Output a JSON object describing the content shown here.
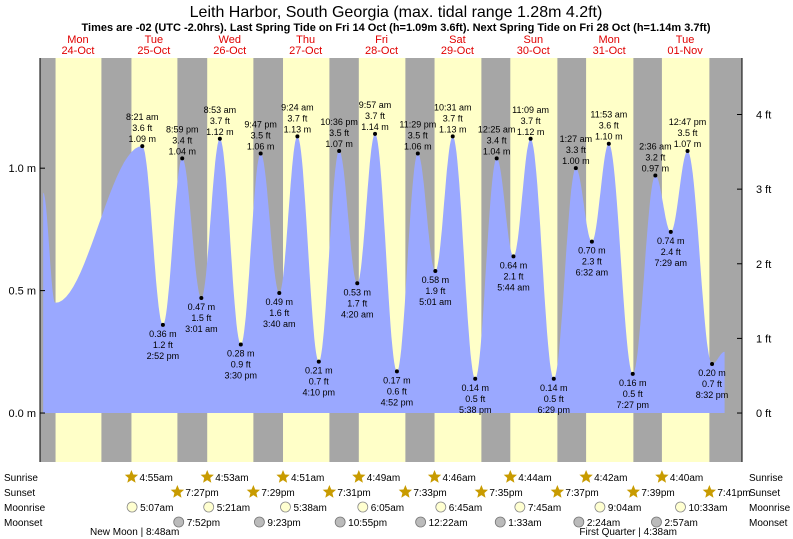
{
  "chart_data": {
    "type": "area",
    "title": "Leith Harbor, South Georgia (max. tidal range 1.28m 4.2ft)",
    "subtitle": "Times are -02 (UTC -2.0hrs). Last Spring Tide on Fri 14 Oct (h=1.09m 3.6ft). Next Spring Tide on Fri 28 Oct (h=1.14m 3.7ft)",
    "x_unit": "hours from Mon 24-Oct 00:00",
    "xlim": [
      0,
      222
    ],
    "ylim": [
      -0.2,
      1.45
    ],
    "days": [
      {
        "dow": "Mon",
        "date": "24-Oct"
      },
      {
        "dow": "Tue",
        "date": "25-Oct"
      },
      {
        "dow": "Wed",
        "date": "26-Oct"
      },
      {
        "dow": "Thu",
        "date": "27-Oct"
      },
      {
        "dow": "Fri",
        "date": "28-Oct"
      },
      {
        "dow": "Sat",
        "date": "29-Oct"
      },
      {
        "dow": "Sun",
        "date": "30-Oct"
      },
      {
        "dow": "Mon",
        "date": "31-Oct"
      },
      {
        "dow": "Tue",
        "date": "01-Nov"
      }
    ],
    "left_axis": {
      "unit": "m",
      "ticks": [
        {
          "v": 0,
          "label": "0.0 m"
        },
        {
          "v": 0.5,
          "label": "0.5 m"
        },
        {
          "v": 1.0,
          "label": "1.0 m"
        }
      ]
    },
    "right_axis": {
      "unit": "ft",
      "ticks": [
        {
          "v": 0,
          "label": "0 ft"
        },
        {
          "v": 1,
          "label": "1 ft"
        },
        {
          "v": 2,
          "label": "2 ft"
        },
        {
          "v": 3,
          "label": "3 ft"
        },
        {
          "v": 4,
          "label": "4 ft"
        }
      ]
    },
    "series_start": {
      "t": 1.0,
      "h": 0.9
    },
    "series_end": {
      "t": 216.5,
      "h": 0.25
    },
    "tides": [
      {
        "t": 4.8,
        "h": 0.45,
        "label": false
      },
      {
        "t": 32.35,
        "h": 1.09,
        "m": "1.09 m",
        "ft": "3.6 ft",
        "time": "8:21 am"
      },
      {
        "t": 38.87,
        "h": 0.36,
        "m": "0.36 m",
        "ft": "1.2 ft",
        "time": "2:52 pm"
      },
      {
        "t": 44.98,
        "h": 1.04,
        "m": "1.04 m",
        "ft": "3.4 ft",
        "time": "8:59 pm"
      },
      {
        "t": 51.02,
        "h": 0.47,
        "m": "0.47 m",
        "ft": "1.5 ft",
        "time": "3:01 am"
      },
      {
        "t": 56.88,
        "h": 1.12,
        "m": "1.12 m",
        "ft": "3.7 ft",
        "time": "8:53 am"
      },
      {
        "t": 63.5,
        "h": 0.28,
        "m": "0.28 m",
        "ft": "0.9 ft",
        "time": "3:30 pm"
      },
      {
        "t": 69.78,
        "h": 1.06,
        "m": "1.06 m",
        "ft": "3.5 ft",
        "time": "9:47 pm"
      },
      {
        "t": 75.67,
        "h": 0.49,
        "m": "0.49 m",
        "ft": "1.6 ft",
        "time": "3:40 am"
      },
      {
        "t": 81.4,
        "h": 1.13,
        "m": "1.13 m",
        "ft": "3.7 ft",
        "time": "9:24 am"
      },
      {
        "t": 88.17,
        "h": 0.21,
        "m": "0.21 m",
        "ft": "0.7 ft",
        "time": "4:10 pm"
      },
      {
        "t": 94.6,
        "h": 1.07,
        "m": "1.07 m",
        "ft": "3.5 ft",
        "time": "10:36 pm"
      },
      {
        "t": 100.33,
        "h": 0.53,
        "m": "0.53 m",
        "ft": "1.7 ft",
        "time": "4:20 am"
      },
      {
        "t": 105.95,
        "h": 1.14,
        "m": "1.14 m",
        "ft": "3.7 ft",
        "time": "9:57 am"
      },
      {
        "t": 112.87,
        "h": 0.17,
        "m": "0.17 m",
        "ft": "0.6 ft",
        "time": "4:52 pm"
      },
      {
        "t": 119.48,
        "h": 1.06,
        "m": "1.06 m",
        "ft": "3.5 ft",
        "time": "11:29 pm"
      },
      {
        "t": 125.02,
        "h": 0.58,
        "m": "0.58 m",
        "ft": "1.9 ft",
        "time": "5:01 am"
      },
      {
        "t": 130.52,
        "h": 1.13,
        "m": "1.13 m",
        "ft": "3.7 ft",
        "time": "10:31 am"
      },
      {
        "t": 137.63,
        "h": 0.14,
        "m": "0.14 m",
        "ft": "0.5 ft",
        "time": "5:38 pm"
      },
      {
        "t": 144.42,
        "h": 1.04,
        "m": "1.04 m",
        "ft": "3.4 ft",
        "time": "12:25 am"
      },
      {
        "t": 149.73,
        "h": 0.64,
        "m": "0.64 m",
        "ft": "2.1 ft",
        "time": "5:44 am"
      },
      {
        "t": 155.15,
        "h": 1.12,
        "m": "1.12 m",
        "ft": "3.7 ft",
        "time": "11:09 am"
      },
      {
        "t": 162.48,
        "h": 0.14,
        "m": "0.14 m",
        "ft": "0.5 ft",
        "time": "6:29 pm"
      },
      {
        "t": 169.45,
        "h": 1.0,
        "m": "1.00 m",
        "ft": "3.3 ft",
        "time": "1:27 am"
      },
      {
        "t": 174.53,
        "h": 0.7,
        "m": "0.70 m",
        "ft": "2.3 ft",
        "time": "6:32 am"
      },
      {
        "t": 179.88,
        "h": 1.1,
        "m": "1.10 m",
        "ft": "3.6 ft",
        "time": "11:53 am"
      },
      {
        "t": 187.45,
        "h": 0.16,
        "m": "0.16 m",
        "ft": "0.5 ft",
        "time": "7:27 pm"
      },
      {
        "t": 194.6,
        "h": 0.97,
        "m": "0.97 m",
        "ft": "3.2 ft",
        "time": "2:36 am"
      },
      {
        "t": 199.48,
        "h": 0.74,
        "m": "0.74 m",
        "ft": "2.4 ft",
        "time": "7:29 am"
      },
      {
        "t": 204.78,
        "h": 1.07,
        "m": "1.07 m",
        "ft": "3.5 ft",
        "time": "12:47 pm"
      },
      {
        "t": 212.53,
        "h": 0.2,
        "m": "0.20 m",
        "ft": "0.7 ft",
        "time": "8:32 pm"
      }
    ],
    "daylight": [
      {
        "rise": 4.92,
        "set": 19.42
      },
      {
        "rise": 28.92,
        "set": 43.45
      },
      {
        "rise": 52.88,
        "set": 67.48
      },
      {
        "rise": 76.85,
        "set": 91.52
      },
      {
        "rise": 100.82,
        "set": 115.55
      },
      {
        "rise": 124.77,
        "set": 139.58
      },
      {
        "rise": 148.73,
        "set": 163.62
      },
      {
        "rise": 172.7,
        "set": 187.65
      },
      {
        "rise": 196.67,
        "set": 211.68
      }
    ],
    "row_labels": {
      "sunrise": "Sunrise",
      "sunset": "Sunset",
      "moonrise": "Moonrise",
      "moonset": "Moonset"
    },
    "sunrise": [
      {
        "t": 28.92,
        "label": "4:55am"
      },
      {
        "t": 52.88,
        "label": "4:53am"
      },
      {
        "t": 76.85,
        "label": "4:51am"
      },
      {
        "t": 100.82,
        "label": "4:49am"
      },
      {
        "t": 124.77,
        "label": "4:46am"
      },
      {
        "t": 148.73,
        "label": "4:44am"
      },
      {
        "t": 172.7,
        "label": "4:42am"
      },
      {
        "t": 196.67,
        "label": "4:40am"
      }
    ],
    "sunset": [
      {
        "t": 43.45,
        "label": "7:27pm"
      },
      {
        "t": 67.48,
        "label": "7:29pm"
      },
      {
        "t": 91.52,
        "label": "7:31pm"
      },
      {
        "t": 115.55,
        "label": "7:33pm"
      },
      {
        "t": 139.58,
        "label": "7:35pm"
      },
      {
        "t": 163.62,
        "label": "7:37pm"
      },
      {
        "t": 187.65,
        "label": "7:39pm"
      },
      {
        "t": 211.68,
        "label": "7:41pm"
      }
    ],
    "moonrise": [
      {
        "t": 29.12,
        "label": "5:07am"
      },
      {
        "t": 53.35,
        "label": "5:21am"
      },
      {
        "t": 77.63,
        "label": "5:38am"
      },
      {
        "t": 102.08,
        "label": "6:05am"
      },
      {
        "t": 126.75,
        "label": "6:45am"
      },
      {
        "t": 151.75,
        "label": "7:45am"
      },
      {
        "t": 177.07,
        "label": "9:04am"
      },
      {
        "t": 202.55,
        "label": "10:33am"
      }
    ],
    "moonset": [
      {
        "t": 43.87,
        "label": "7:52pm"
      },
      {
        "t": 69.38,
        "label": "9:23pm"
      },
      {
        "t": 94.92,
        "label": "10:55pm"
      },
      {
        "t": 120.37,
        "label": "12:22am"
      },
      {
        "t": 145.55,
        "label": "1:33am"
      },
      {
        "t": 170.4,
        "label": "2:24am"
      },
      {
        "t": 194.95,
        "label": "2:57am"
      }
    ],
    "moon_phases": [
      {
        "label": "New Moon | 8:48am",
        "anchor": "left"
      },
      {
        "label": "First Quarter | 4:38am",
        "anchor": "right"
      }
    ]
  },
  "colors": {
    "night": "#a6a6a6",
    "day": "#ffffc8",
    "tide": "#9aa8ff",
    "day_label": "#e00000",
    "star": "#c89b00",
    "moon_fill": "#ffffd0",
    "moon_set_fill": "#bbbbbb"
  }
}
